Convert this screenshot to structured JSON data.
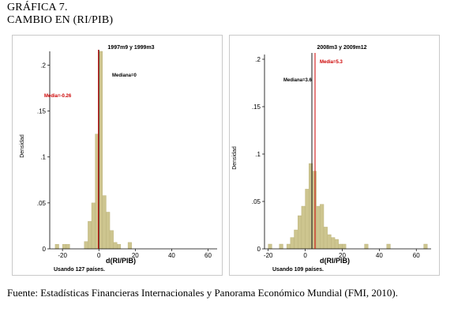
{
  "heading": {
    "line1": "GRÁFICA 7.",
    "line2": "CAMBIO EN (RI/PIB)"
  },
  "source": "Fuente: Estadísticas Financieras Internacionales y Panorama Económico Mundial (FMI, 2010).",
  "colors": {
    "bar": "#cdc58f",
    "bar_edge": "#b9b079",
    "mean_line": "#cc0000",
    "median_line": "#1a1a1a"
  },
  "chart_data": [
    {
      "type": "bar",
      "subtitle": "1997m9 y 1999m3",
      "xlabel": "d(RI/PIB)",
      "ylabel": "Densidad",
      "note": "Usando 127 países.",
      "xlim": [
        -27,
        65
      ],
      "ylim": [
        0,
        0.215
      ],
      "xticks": [
        -20,
        0,
        20,
        40,
        60
      ],
      "yticks": [
        0,
        0.05,
        0.1,
        0.15,
        0.2
      ],
      "ytick_labels": [
        "0",
        ".05",
        ".1",
        ".15",
        ".2"
      ],
      "bin_width": 2,
      "bins_start": [
        -24,
        -20,
        -18,
        -8,
        -6,
        -4,
        -2,
        0,
        2,
        4,
        6,
        8,
        10,
        16
      ],
      "density": [
        0.005,
        0.005,
        0.005,
        0.008,
        0.03,
        0.05,
        0.125,
        0.215,
        0.058,
        0.04,
        0.02,
        0.007,
        0.005,
        0.007
      ],
      "mean": -0.26,
      "median": 0,
      "mean_label": "Media=-0.26",
      "median_label": "Mediana=0"
    },
    {
      "type": "bar",
      "subtitle": "2008m3 y 2009m12",
      "xlabel": "d(RI/PIB)",
      "ylabel": "Densidad",
      "note": "Usando 109 países.",
      "xlim": [
        -22,
        68
      ],
      "ylim": [
        0,
        0.205
      ],
      "xticks": [
        -20,
        0,
        20,
        40,
        60
      ],
      "yticks": [
        0,
        0.05,
        0.1,
        0.15,
        0.2
      ],
      "ytick_labels": [
        "0",
        ".05",
        ".1",
        ".15",
        ".2"
      ],
      "bin_width": 2,
      "bins_start": [
        -20,
        -14,
        -10,
        -8,
        -6,
        -4,
        -2,
        0,
        2,
        4,
        6,
        8,
        10,
        12,
        14,
        16,
        18,
        20,
        32,
        44,
        64
      ],
      "density": [
        0.005,
        0.005,
        0.005,
        0.012,
        0.02,
        0.035,
        0.045,
        0.063,
        0.09,
        0.082,
        0.045,
        0.047,
        0.023,
        0.015,
        0.012,
        0.01,
        0.005,
        0.005,
        0.005,
        0.005,
        0.005
      ],
      "mean": 5.3,
      "median": 3.6,
      "mean_label": "Media=5.3",
      "median_label": "Mediana=3.6"
    }
  ]
}
